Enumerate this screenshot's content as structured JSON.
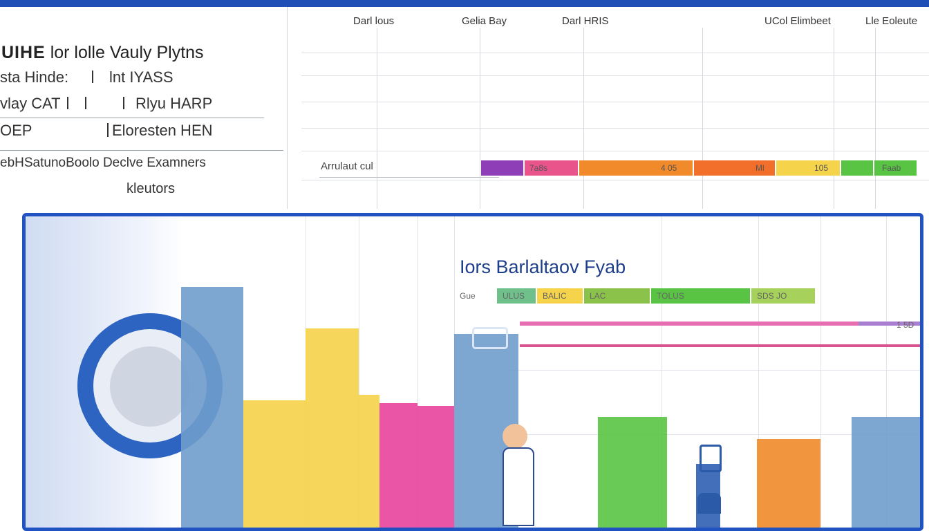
{
  "header": {
    "brand": "UIHE",
    "title_rest": "lor  lolle  Vauly  Plytns"
  },
  "info": {
    "row1_left": "sta Hinde:",
    "row1_right": "lnt IYASS",
    "row2_left": "vlay CAT",
    "row2_right": "Rlyu HARP",
    "row3_left": "OEP",
    "row3_right": "Eloresten HEN",
    "row4": "ebHSatunoBoolo  Declve  Examners",
    "row5": "kleutors"
  },
  "timeline": {
    "headers": [
      "Darl lous",
      "Gelia Bay",
      "Darl HRIS",
      "UCol Elimbeet",
      "Lle Eoleute"
    ],
    "row_label": "Arrulaut cul",
    "segment_labels": [
      "7a8s",
      "4 05",
      "Ml",
      "105",
      "Faab"
    ]
  },
  "chart": {
    "title": "Iors Barlaltaov Fyab",
    "legend_lead": "Gue",
    "legend_labels": [
      "ULUS",
      "BALIC",
      "LAC",
      "TOLUS",
      "SDS JO"
    ],
    "stripe_label": "1 5D"
  },
  "colors": {
    "accent": "#1f4fb6",
    "purple": "#8e3fb8",
    "pink": "#e9548a",
    "orange": "#f08a2a",
    "yellow": "#f5d34a",
    "green": "#59c443",
    "blue": "#6f9ccc",
    "magenta": "#e8439b"
  },
  "chart_data": [
    {
      "type": "bar",
      "title": "Iors Barlaltaov Fyab",
      "xlabel": "",
      "ylabel": "",
      "categories": [
        "",
        "",
        "",
        "",
        "",
        "",
        "",
        "",
        "",
        "",
        ""
      ],
      "values": [
        87,
        46,
        72,
        48,
        45,
        44,
        70,
        40,
        23,
        32,
        40
      ],
      "bar_colors": [
        "#6f9ccc",
        "#f5d34a",
        "#f5d34a",
        "#f5d34a",
        "#e8439b",
        "#e8439b",
        "#6f9ccc",
        "#59c443",
        "#2f5fb2",
        "#f08a2a",
        "#6f9ccc"
      ],
      "ylim": [
        0,
        100
      ]
    },
    {
      "type": "bar",
      "title": "",
      "categories": [
        "Arrulaut cul"
      ],
      "series": [
        {
          "values": [
            8
          ]
        },
        {
          "values": [
            10
          ]
        },
        {
          "values": [
            21
          ]
        },
        {
          "values": [
            15
          ]
        },
        {
          "values": [
            12
          ]
        },
        {
          "values": [
            6
          ]
        },
        {
          "values": [
            8
          ]
        }
      ],
      "series_colors": [
        "#8e3fb8",
        "#e9548a",
        "#f08a2a",
        "#f26f2b",
        "#f5d34a",
        "#59c443",
        "#59c443"
      ]
    }
  ]
}
